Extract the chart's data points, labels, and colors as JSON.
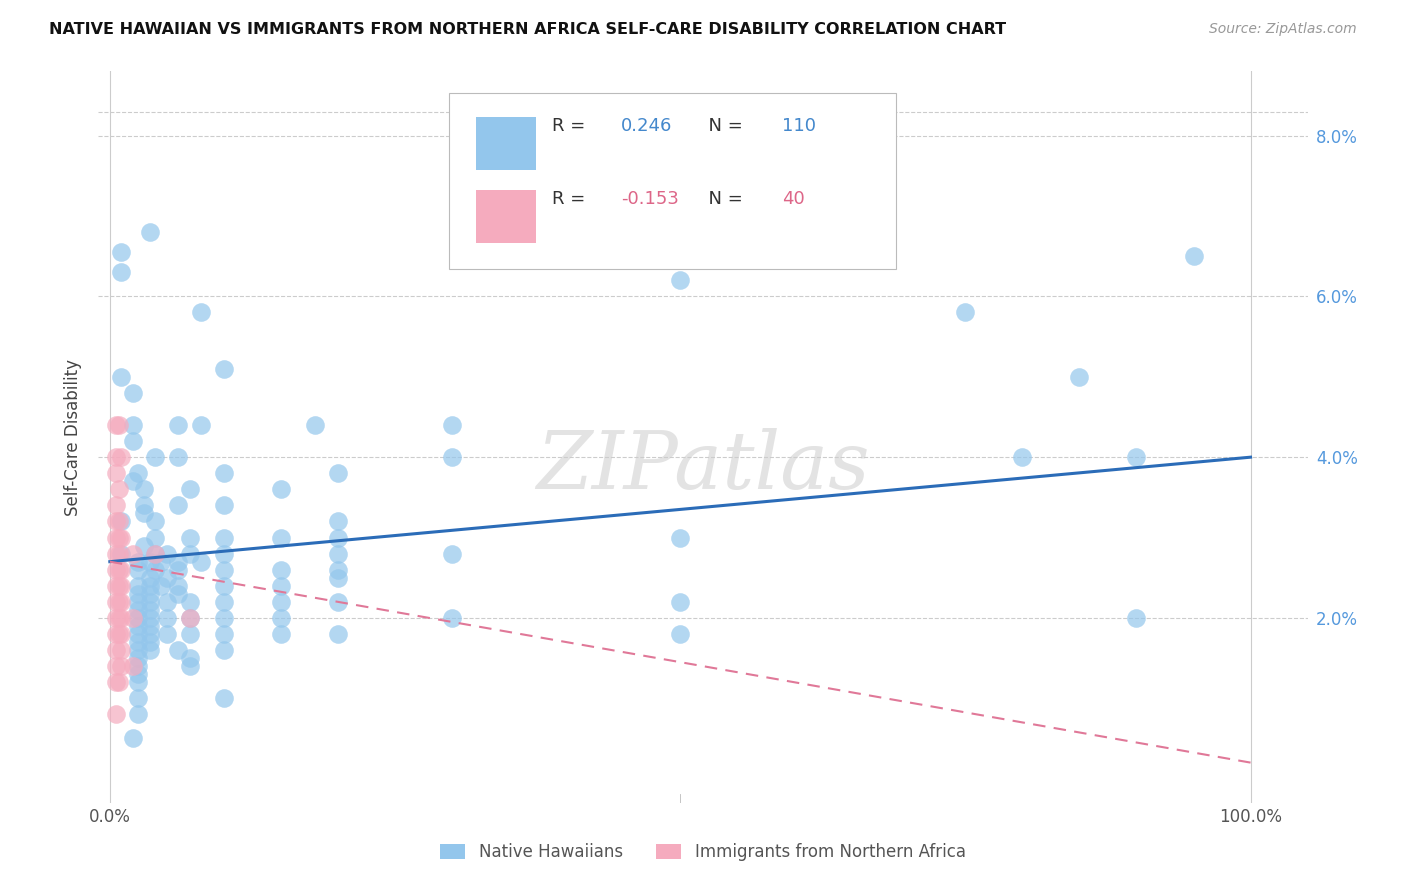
{
  "title": "NATIVE HAWAIIAN VS IMMIGRANTS FROM NORTHERN AFRICA SELF-CARE DISABILITY CORRELATION CHART",
  "source": "Source: ZipAtlas.com",
  "ylabel": "Self-Care Disability",
  "yticks": [
    0.0,
    0.02,
    0.04,
    0.06,
    0.08
  ],
  "ytick_labels": [
    "",
    "2.0%",
    "4.0%",
    "6.0%",
    "8.0%"
  ],
  "legend1_label": "Native Hawaiians",
  "legend2_label": "Immigrants from Northern Africa",
  "R1": 0.246,
  "N1": 110,
  "R2": -0.153,
  "N2": 40,
  "color_blue": "#93C6EC",
  "color_pink": "#F5ABBE",
  "line_blue": "#2B6CB8",
  "line_pink": "#E07898",
  "watermark": "ZIPatlas",
  "blue_line_x0": 0.0,
  "blue_line_y0": 0.027,
  "blue_line_x1": 1.0,
  "blue_line_y1": 0.04,
  "pink_line_x0": 0.0,
  "pink_line_y0": 0.027,
  "pink_line_x1": 1.0,
  "pink_line_y1": 0.002,
  "xlim": [
    -0.01,
    1.05
  ],
  "ylim": [
    -0.003,
    0.088
  ],
  "blue_points": [
    [
      0.01,
      0.0655
    ],
    [
      0.035,
      0.068
    ],
    [
      0.01,
      0.063
    ],
    [
      0.95,
      0.065
    ],
    [
      0.08,
      0.058
    ],
    [
      0.75,
      0.058
    ],
    [
      0.01,
      0.05
    ],
    [
      0.02,
      0.048
    ],
    [
      0.1,
      0.051
    ],
    [
      0.5,
      0.062
    ],
    [
      0.02,
      0.044
    ],
    [
      0.06,
      0.044
    ],
    [
      0.08,
      0.044
    ],
    [
      0.18,
      0.044
    ],
    [
      0.3,
      0.044
    ],
    [
      0.85,
      0.05
    ],
    [
      0.02,
      0.042
    ],
    [
      0.04,
      0.04
    ],
    [
      0.06,
      0.04
    ],
    [
      0.3,
      0.04
    ],
    [
      0.8,
      0.04
    ],
    [
      0.9,
      0.04
    ],
    [
      0.025,
      0.038
    ],
    [
      0.1,
      0.038
    ],
    [
      0.2,
      0.038
    ],
    [
      0.02,
      0.037
    ],
    [
      0.03,
      0.036
    ],
    [
      0.07,
      0.036
    ],
    [
      0.15,
      0.036
    ],
    [
      0.03,
      0.034
    ],
    [
      0.06,
      0.034
    ],
    [
      0.1,
      0.034
    ],
    [
      0.03,
      0.033
    ],
    [
      0.04,
      0.032
    ],
    [
      0.2,
      0.032
    ],
    [
      0.01,
      0.032
    ],
    [
      0.04,
      0.03
    ],
    [
      0.07,
      0.03
    ],
    [
      0.1,
      0.03
    ],
    [
      0.15,
      0.03
    ],
    [
      0.2,
      0.03
    ],
    [
      0.5,
      0.03
    ],
    [
      0.03,
      0.029
    ],
    [
      0.04,
      0.028
    ],
    [
      0.05,
      0.028
    ],
    [
      0.07,
      0.028
    ],
    [
      0.1,
      0.028
    ],
    [
      0.2,
      0.028
    ],
    [
      0.3,
      0.028
    ],
    [
      0.01,
      0.028
    ],
    [
      0.025,
      0.027
    ],
    [
      0.035,
      0.027
    ],
    [
      0.045,
      0.027
    ],
    [
      0.06,
      0.027
    ],
    [
      0.08,
      0.027
    ],
    [
      0.025,
      0.026
    ],
    [
      0.04,
      0.026
    ],
    [
      0.06,
      0.026
    ],
    [
      0.1,
      0.026
    ],
    [
      0.15,
      0.026
    ],
    [
      0.2,
      0.026
    ],
    [
      0.035,
      0.025
    ],
    [
      0.05,
      0.025
    ],
    [
      0.2,
      0.025
    ],
    [
      0.025,
      0.024
    ],
    [
      0.035,
      0.024
    ],
    [
      0.045,
      0.024
    ],
    [
      0.06,
      0.024
    ],
    [
      0.1,
      0.024
    ],
    [
      0.15,
      0.024
    ],
    [
      0.025,
      0.023
    ],
    [
      0.035,
      0.023
    ],
    [
      0.06,
      0.023
    ],
    [
      0.025,
      0.022
    ],
    [
      0.035,
      0.022
    ],
    [
      0.05,
      0.022
    ],
    [
      0.07,
      0.022
    ],
    [
      0.1,
      0.022
    ],
    [
      0.15,
      0.022
    ],
    [
      0.2,
      0.022
    ],
    [
      0.5,
      0.022
    ],
    [
      0.025,
      0.021
    ],
    [
      0.035,
      0.021
    ],
    [
      0.025,
      0.02
    ],
    [
      0.035,
      0.02
    ],
    [
      0.05,
      0.02
    ],
    [
      0.07,
      0.02
    ],
    [
      0.1,
      0.02
    ],
    [
      0.15,
      0.02
    ],
    [
      0.3,
      0.02
    ],
    [
      0.9,
      0.02
    ],
    [
      0.025,
      0.019
    ],
    [
      0.035,
      0.019
    ],
    [
      0.025,
      0.018
    ],
    [
      0.035,
      0.018
    ],
    [
      0.05,
      0.018
    ],
    [
      0.07,
      0.018
    ],
    [
      0.1,
      0.018
    ],
    [
      0.15,
      0.018
    ],
    [
      0.2,
      0.018
    ],
    [
      0.5,
      0.018
    ],
    [
      0.025,
      0.017
    ],
    [
      0.035,
      0.017
    ],
    [
      0.025,
      0.016
    ],
    [
      0.035,
      0.016
    ],
    [
      0.06,
      0.016
    ],
    [
      0.1,
      0.016
    ],
    [
      0.025,
      0.015
    ],
    [
      0.07,
      0.015
    ],
    [
      0.025,
      0.014
    ],
    [
      0.07,
      0.014
    ],
    [
      0.025,
      0.013
    ],
    [
      0.025,
      0.012
    ],
    [
      0.1,
      0.01
    ],
    [
      0.025,
      0.01
    ],
    [
      0.025,
      0.008
    ],
    [
      0.02,
      0.005
    ]
  ],
  "pink_points": [
    [
      0.005,
      0.044
    ],
    [
      0.008,
      0.044
    ],
    [
      0.005,
      0.04
    ],
    [
      0.01,
      0.04
    ],
    [
      0.005,
      0.038
    ],
    [
      0.008,
      0.036
    ],
    [
      0.005,
      0.034
    ],
    [
      0.005,
      0.032
    ],
    [
      0.008,
      0.032
    ],
    [
      0.005,
      0.03
    ],
    [
      0.008,
      0.03
    ],
    [
      0.01,
      0.03
    ],
    [
      0.005,
      0.028
    ],
    [
      0.008,
      0.028
    ],
    [
      0.02,
      0.028
    ],
    [
      0.04,
      0.028
    ],
    [
      0.005,
      0.026
    ],
    [
      0.008,
      0.026
    ],
    [
      0.01,
      0.026
    ],
    [
      0.005,
      0.024
    ],
    [
      0.008,
      0.024
    ],
    [
      0.01,
      0.024
    ],
    [
      0.005,
      0.022
    ],
    [
      0.008,
      0.022
    ],
    [
      0.01,
      0.022
    ],
    [
      0.005,
      0.02
    ],
    [
      0.008,
      0.02
    ],
    [
      0.01,
      0.02
    ],
    [
      0.02,
      0.02
    ],
    [
      0.07,
      0.02
    ],
    [
      0.005,
      0.018
    ],
    [
      0.008,
      0.018
    ],
    [
      0.01,
      0.018
    ],
    [
      0.005,
      0.016
    ],
    [
      0.01,
      0.016
    ],
    [
      0.005,
      0.014
    ],
    [
      0.01,
      0.014
    ],
    [
      0.02,
      0.014
    ],
    [
      0.005,
      0.012
    ],
    [
      0.008,
      0.012
    ],
    [
      0.005,
      0.008
    ]
  ]
}
